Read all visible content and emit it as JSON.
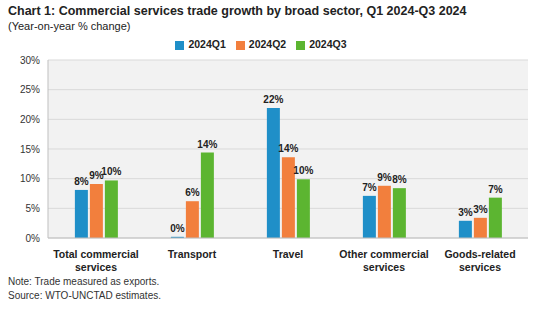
{
  "chart_data": {
    "type": "bar",
    "title": "Chart 1: Commercial services trade growth by broad sector, Q1 2024-Q3 2024",
    "subtitle": "(Year-on-year % change)",
    "categories": [
      "Total commercial services",
      "Transport",
      "Travel",
      "Other commercial services",
      "Goods-related services"
    ],
    "series": [
      {
        "name": "2024Q1",
        "color": "#1f8fc8",
        "values": [
          8.1,
          0.2,
          21.9,
          7.1,
          2.9
        ],
        "value_labels": [
          "8%",
          "0%",
          "22%",
          "7%",
          "3%"
        ]
      },
      {
        "name": "2024Q2",
        "color": "#f27f3d",
        "values": [
          9.1,
          6.2,
          13.6,
          8.8,
          3.4
        ],
        "value_labels": [
          "9%",
          "6%",
          "14%",
          "9%",
          "3%"
        ]
      },
      {
        "name": "2024Q3",
        "color": "#5cb531",
        "values": [
          9.7,
          14.4,
          9.9,
          8.4,
          6.8
        ],
        "value_labels": [
          "10%",
          "14%",
          "10%",
          "8%",
          "7%"
        ]
      }
    ],
    "ylim": [
      0,
      30
    ],
    "yticks": [
      {
        "value": 0,
        "label": "0%"
      },
      {
        "value": 5,
        "label": "5%"
      },
      {
        "value": 10,
        "label": "10%"
      },
      {
        "value": 15,
        "label": "15%"
      },
      {
        "value": 20,
        "label": "20%"
      },
      {
        "value": 25,
        "label": "25%"
      },
      {
        "value": 30,
        "label": "30%"
      }
    ],
    "grid": true,
    "legend": "top",
    "data_labels": true,
    "notes": [
      "Note: Trade measured as exports.",
      "Source: WTO-UNCTAD estimates."
    ]
  }
}
